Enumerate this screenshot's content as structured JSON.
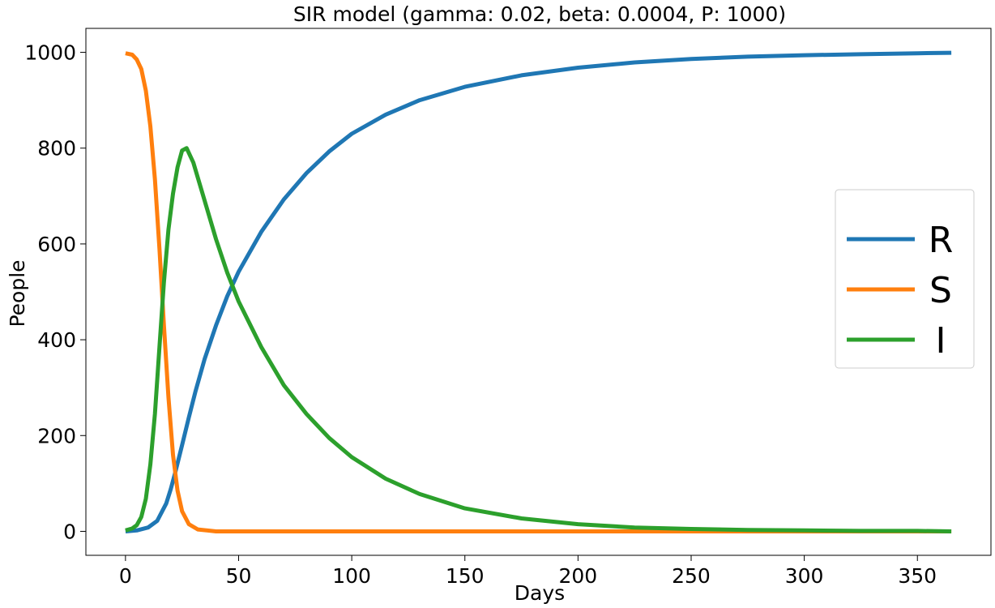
{
  "chart_data": {
    "type": "line",
    "title": "SIR model (gamma: 0.02, beta: 0.0004, P: 1000)",
    "xlabel": "Days",
    "ylabel": "People",
    "xlim": [
      -17.5,
      382.5
    ],
    "ylim": [
      -50,
      1050
    ],
    "xticks": [
      0,
      50,
      100,
      150,
      200,
      250,
      300,
      350
    ],
    "yticks": [
      0,
      200,
      400,
      600,
      800,
      1000
    ],
    "grid": false,
    "legend_position": "center-right",
    "series": [
      {
        "name": "R",
        "color": "#1f77b4",
        "x": [
          0,
          5,
          10,
          14,
          18,
          20,
          22,
          25,
          28,
          31,
          35,
          40,
          45,
          50,
          60,
          70,
          80,
          90,
          100,
          115,
          130,
          150,
          175,
          200,
          225,
          250,
          275,
          300,
          325,
          350,
          365
        ],
        "values": [
          0,
          2,
          8,
          22,
          58,
          88,
          123,
          180,
          238,
          293,
          360,
          430,
          491,
          542,
          625,
          693,
          748,
          793,
          830,
          870,
          900,
          928,
          952,
          968,
          979,
          986,
          991,
          994,
          996,
          998,
          999
        ]
      },
      {
        "name": "S",
        "color": "#ff7f0e",
        "x": [
          0,
          3,
          5,
          7,
          9,
          11,
          13,
          15,
          17,
          19,
          21,
          23,
          25,
          28,
          32,
          40,
          50,
          365
        ],
        "values": [
          998,
          995,
          985,
          965,
          920,
          845,
          735,
          590,
          430,
          280,
          160,
          85,
          42,
          15,
          4,
          0,
          0,
          0
        ]
      },
      {
        "name": "I",
        "color": "#2ca02c",
        "x": [
          0,
          3,
          5,
          7,
          9,
          11,
          13,
          15,
          17,
          19,
          21,
          23,
          25,
          27,
          30,
          35,
          40,
          45,
          50,
          60,
          70,
          80,
          90,
          100,
          115,
          130,
          150,
          175,
          200,
          225,
          250,
          275,
          300,
          325,
          350,
          365
        ],
        "values": [
          2,
          6,
          13,
          30,
          68,
          140,
          245,
          385,
          520,
          630,
          705,
          760,
          795,
          800,
          770,
          690,
          610,
          540,
          480,
          385,
          305,
          245,
          195,
          155,
          110,
          78,
          48,
          27,
          15,
          8,
          5,
          3,
          2,
          1,
          1,
          0
        ]
      }
    ]
  }
}
